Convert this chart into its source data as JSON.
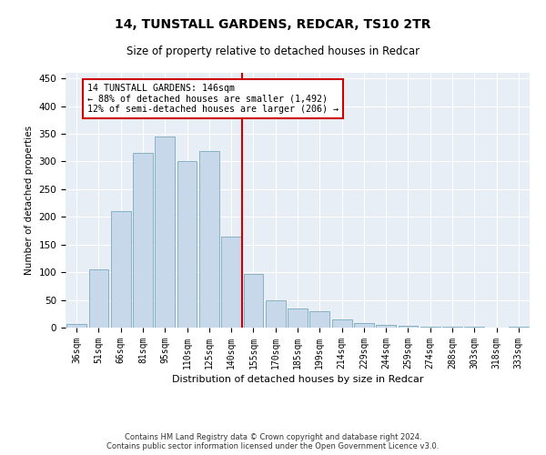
{
  "title": "14, TUNSTALL GARDENS, REDCAR, TS10 2TR",
  "subtitle": "Size of property relative to detached houses in Redcar",
  "xlabel": "Distribution of detached houses by size in Redcar",
  "ylabel": "Number of detached properties",
  "categories": [
    "36sqm",
    "51sqm",
    "66sqm",
    "81sqm",
    "95sqm",
    "110sqm",
    "125sqm",
    "140sqm",
    "155sqm",
    "170sqm",
    "185sqm",
    "199sqm",
    "214sqm",
    "229sqm",
    "244sqm",
    "259sqm",
    "274sqm",
    "288sqm",
    "303sqm",
    "318sqm",
    "333sqm"
  ],
  "values": [
    7,
    105,
    210,
    315,
    345,
    300,
    318,
    165,
    97,
    50,
    35,
    30,
    15,
    8,
    5,
    3,
    1.5,
    1,
    1,
    0.5,
    1
  ],
  "bar_color": "#c8d8eb",
  "bar_edgecolor": "#7aaabb",
  "vline_x": 7.5,
  "vline_color": "#cc0000",
  "annotation_text": "14 TUNSTALL GARDENS: 146sqm\n← 88% of detached houses are smaller (1,492)\n12% of semi-detached houses are larger (206) →",
  "annotation_box_color": "#cc0000",
  "ylim": [
    0,
    460
  ],
  "yticks": [
    0,
    50,
    100,
    150,
    200,
    250,
    300,
    350,
    400,
    450
  ],
  "bg_color": "#e8eef5",
  "grid_color": "#ffffff",
  "footer_line1": "Contains HM Land Registry data © Crown copyright and database right 2024.",
  "footer_line2": "Contains public sector information licensed under the Open Government Licence v3.0."
}
